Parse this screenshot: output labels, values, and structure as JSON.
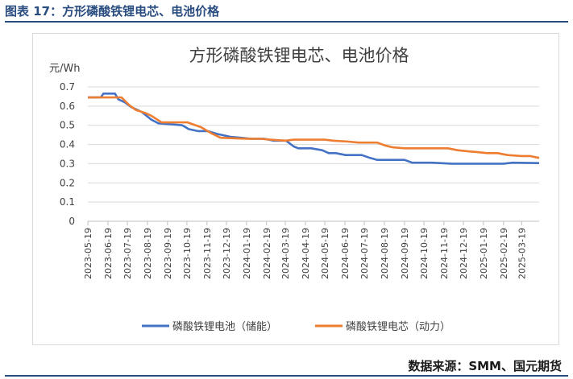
{
  "figure": {
    "caption": "图表 17：方形磷酸铁锂电芯、电池价格",
    "source": "数据来源：SMM、国元期货"
  },
  "chart_data": {
    "type": "line",
    "title": "方形磷酸铁锂电芯、电池价格",
    "ylabel": "元/Wh",
    "xlabel": "",
    "ylim": [
      0,
      0.7
    ],
    "yticks": [
      "0",
      "0.1",
      "0.2",
      "0.3",
      "0.4",
      "0.5",
      "0.6",
      "0.7"
    ],
    "grid": "horizontal",
    "legend": "bottom",
    "x_tick_labels": [
      "2023-05-19",
      "2023-06-19",
      "2023-07-19",
      "2023-08-19",
      "2023-09-19",
      "2023-10-19",
      "2023-11-19",
      "2023-12-19",
      "2024-01-19",
      "2024-02-19",
      "2024-03-19",
      "2024-04-19",
      "2024-05-19",
      "2024-06-19",
      "2024-07-19",
      "2024-08-19",
      "2024-09-19",
      "2024-10-19",
      "2024-11-19",
      "2024-12-19",
      "2025-01-19",
      "2025-02-19",
      "2025-03-19"
    ],
    "x_start": "2023-05-19",
    "x_end": "2025-04-15",
    "series": [
      {
        "name": "磷酸铁锂电池（储能）",
        "color": "#4472c4",
        "points": [
          [
            "2023-05-19",
            0.645
          ],
          [
            "2023-06-08",
            0.645
          ],
          [
            "2023-06-12",
            0.665
          ],
          [
            "2023-06-30",
            0.665
          ],
          [
            "2023-07-05",
            0.635
          ],
          [
            "2023-07-15",
            0.62
          ],
          [
            "2023-07-25",
            0.595
          ],
          [
            "2023-08-10",
            0.57
          ],
          [
            "2023-08-25",
            0.53
          ],
          [
            "2023-09-05",
            0.51
          ],
          [
            "2023-09-25",
            0.505
          ],
          [
            "2023-10-12",
            0.5
          ],
          [
            "2023-10-22",
            0.48
          ],
          [
            "2023-11-05",
            0.47
          ],
          [
            "2023-11-20",
            0.47
          ],
          [
            "2023-12-05",
            0.455
          ],
          [
            "2023-12-25",
            0.44
          ],
          [
            "2024-01-10",
            0.435
          ],
          [
            "2024-01-25",
            0.43
          ],
          [
            "2024-02-15",
            0.43
          ],
          [
            "2024-03-01",
            0.42
          ],
          [
            "2024-03-20",
            0.42
          ],
          [
            "2024-04-01",
            0.39
          ],
          [
            "2024-04-08",
            0.38
          ],
          [
            "2024-04-28",
            0.38
          ],
          [
            "2024-05-15",
            0.37
          ],
          [
            "2024-05-25",
            0.355
          ],
          [
            "2024-06-05",
            0.355
          ],
          [
            "2024-06-20",
            0.345
          ],
          [
            "2024-07-15",
            0.345
          ],
          [
            "2024-07-28",
            0.33
          ],
          [
            "2024-08-08",
            0.32
          ],
          [
            "2024-09-01",
            0.32
          ],
          [
            "2024-09-19",
            0.32
          ],
          [
            "2024-10-01",
            0.305
          ],
          [
            "2024-11-01",
            0.305
          ],
          [
            "2024-12-01",
            0.3
          ],
          [
            "2025-02-19",
            0.3
          ],
          [
            "2025-03-05",
            0.305
          ],
          [
            "2025-04-15",
            0.303
          ]
        ]
      },
      {
        "name": "磷酸铁锂电芯（动力）",
        "color": "#ed7d31",
        "points": [
          [
            "2023-05-19",
            0.645
          ],
          [
            "2023-07-10",
            0.645
          ],
          [
            "2023-07-22",
            0.605
          ],
          [
            "2023-08-01",
            0.58
          ],
          [
            "2023-08-15",
            0.565
          ],
          [
            "2023-08-25",
            0.55
          ],
          [
            "2023-09-10",
            0.515
          ],
          [
            "2023-10-20",
            0.515
          ],
          [
            "2023-11-10",
            0.49
          ],
          [
            "2023-11-25",
            0.46
          ],
          [
            "2023-12-10",
            0.435
          ],
          [
            "2024-01-19",
            0.43
          ],
          [
            "2024-02-10",
            0.43
          ],
          [
            "2024-02-25",
            0.425
          ],
          [
            "2024-03-19",
            0.42
          ],
          [
            "2024-04-01",
            0.425
          ],
          [
            "2024-05-19",
            0.425
          ],
          [
            "2024-06-01",
            0.42
          ],
          [
            "2024-06-25",
            0.415
          ],
          [
            "2024-07-10",
            0.41
          ],
          [
            "2024-08-08",
            0.41
          ],
          [
            "2024-08-20",
            0.395
          ],
          [
            "2024-09-01",
            0.385
          ],
          [
            "2024-09-19",
            0.38
          ],
          [
            "2024-11-25",
            0.38
          ],
          [
            "2024-12-10",
            0.37
          ],
          [
            "2024-12-25",
            0.365
          ],
          [
            "2025-01-10",
            0.36
          ],
          [
            "2025-01-25",
            0.355
          ],
          [
            "2025-02-10",
            0.355
          ],
          [
            "2025-02-25",
            0.345
          ],
          [
            "2025-03-19",
            0.34
          ],
          [
            "2025-04-01",
            0.34
          ],
          [
            "2025-04-15",
            0.33
          ]
        ]
      }
    ]
  }
}
